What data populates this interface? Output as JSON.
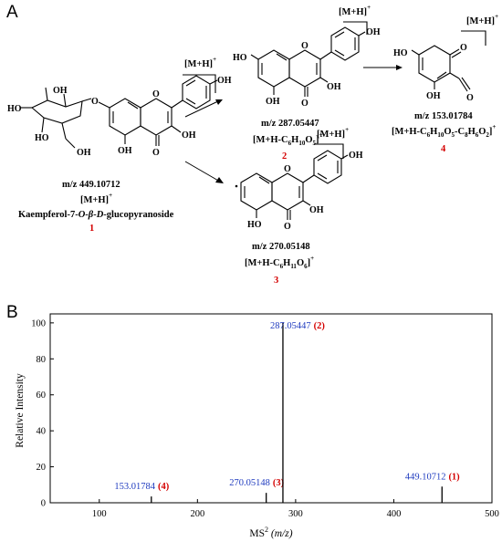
{
  "panels": {
    "a": "A",
    "b": "B"
  },
  "scheme": {
    "ion_label": "[M+H]",
    "ion_charge": "+",
    "compounds": [
      {
        "id": "1",
        "mz": "m/z 449.10712",
        "ion": "[M+H]",
        "charge": "+",
        "name_prefix": "Kaempferol-7-",
        "name_o": "O",
        "name_dash1": "-",
        "name_beta": "β",
        "name_dash2": "-",
        "name_d": "D",
        "name_suffix": "-glucopyranoside"
      },
      {
        "id": "2",
        "mz": "m/z 287.05447",
        "ion": "[M+H-C",
        "f1": "6",
        "f2": "H",
        "f3": "10",
        "f4": "O",
        "f5": "5",
        "f6": "]",
        "charge": "+"
      },
      {
        "id": "3",
        "mz": "m/z 270.05148",
        "ion": "[M+H-C",
        "f1": "6",
        "f2": "H",
        "f3": "11",
        "f4": "O",
        "f5": "6",
        "f6": "]",
        "charge": "+"
      },
      {
        "id": "4",
        "mz": "m/z 153.01784",
        "ion": "[M+H-C",
        "f1": "6",
        "f2": "H",
        "f3": "10",
        "f4": "O",
        "f5": "5",
        "f6": "-C",
        "f7": "8",
        "f8": "H",
        "f9": "6",
        "f10": "O",
        "f11": "2",
        "f12": "]",
        "charge": "+"
      }
    ],
    "atoms": {
      "oh": "OH",
      "ho": "HO",
      "o": "O"
    }
  },
  "chart_data": {
    "type": "bar",
    "xlabel_main": "MS",
    "xlabel_sup": "2",
    "xlabel_unit": "(m/z)",
    "ylabel": "Relative Intensity",
    "xlim": [
      50,
      500
    ],
    "ylim": [
      0,
      105
    ],
    "xticks": [
      100,
      200,
      300,
      400,
      500
    ],
    "yticks": [
      0,
      20,
      40,
      60,
      80,
      100
    ],
    "peaks": [
      {
        "mz": 153.01784,
        "intensity": 3.5,
        "label": "153.01784",
        "cmp": "(4)"
      },
      {
        "mz": 270.05148,
        "intensity": 5.5,
        "label": "270.05148",
        "cmp": "(3)"
      },
      {
        "mz": 287.05447,
        "intensity": 100,
        "label": "287.05447",
        "cmp": "(2)"
      },
      {
        "mz": 449.10712,
        "intensity": 9,
        "label": "449.10712",
        "cmp": "(1)"
      }
    ]
  }
}
